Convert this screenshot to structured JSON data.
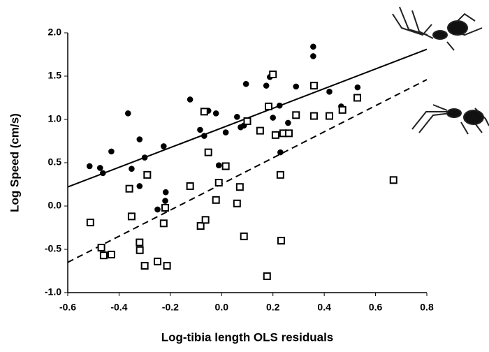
{
  "chart_data": {
    "type": "scatter",
    "x_label": "Log-tibia length OLS residuals",
    "y_label": "Log Speed (cm/s)",
    "xlim": [
      -0.6,
      0.8
    ],
    "ylim": [
      -1.0,
      2.0
    ],
    "xticks": [
      -0.6,
      -0.4,
      -0.2,
      {
        "value": 0,
        "label": "0.0"
      },
      0.2,
      0.4,
      0.6,
      0.8
    ],
    "yticks": [
      {
        "value": -1,
        "label": "-1.0"
      },
      -0.5,
      {
        "value": 0,
        "label": "0.0"
      },
      0.5,
      {
        "value": 1,
        "label": "1.0"
      },
      1.5,
      {
        "value": 2,
        "label": "2.0"
      }
    ],
    "grid": false,
    "series": [
      {
        "color": "#000000",
        "marker": "circle",
        "filled": true,
        "x": [
          -0.515,
          -0.474,
          -0.463,
          -0.43,
          -0.365,
          -0.351,
          -0.32,
          -0.32,
          -0.3,
          -0.226,
          -0.218,
          -0.22,
          -0.25,
          -0.123,
          -0.084,
          -0.068,
          -0.052,
          -0.022,
          -0.011,
          0.016,
          0.095,
          0.06,
          0.074,
          0.087,
          0.174,
          0.188,
          0.2,
          0.226,
          0.229,
          0.259,
          0.29,
          0.357,
          0.357,
          0.42,
          0.466,
          0.53
        ],
        "values": [
          0.46,
          0.44,
          0.38,
          0.63,
          1.07,
          0.43,
          0.77,
          0.23,
          0.56,
          0.69,
          0.16,
          0.06,
          -0.04,
          1.23,
          0.88,
          0.81,
          1.1,
          1.07,
          0.47,
          0.85,
          1.41,
          1.03,
          0.91,
          0.93,
          1.39,
          1.49,
          1.02,
          1.16,
          0.62,
          0.96,
          1.38,
          1.84,
          1.73,
          1.32,
          1.15,
          1.37
        ]
      },
      {
        "color": "#000000",
        "marker": "square",
        "filled": false,
        "x": [
          -0.512,
          -0.469,
          -0.46,
          -0.43,
          -0.36,
          -0.351,
          -0.32,
          -0.319,
          -0.3,
          -0.29,
          -0.25,
          -0.226,
          -0.22,
          -0.213,
          -0.123,
          -0.082,
          -0.068,
          -0.063,
          -0.052,
          -0.022,
          -0.011,
          0.016,
          0.06,
          0.071,
          0.087,
          0.1,
          0.15,
          0.177,
          0.183,
          0.2,
          0.21,
          0.229,
          0.232,
          0.24,
          0.262,
          0.29,
          0.36,
          0.36,
          0.42,
          0.471,
          0.529,
          0.67
        ],
        "values": [
          -0.19,
          -0.48,
          -0.57,
          -0.56,
          0.2,
          -0.12,
          -0.42,
          -0.51,
          -0.69,
          0.36,
          -0.64,
          -0.2,
          -0.02,
          -0.69,
          0.23,
          -0.23,
          1.09,
          -0.16,
          0.62,
          0.07,
          0.27,
          0.46,
          0.03,
          0.22,
          -0.35,
          0.98,
          0.87,
          -0.81,
          1.15,
          1.52,
          0.82,
          0.36,
          -0.4,
          0.84,
          0.84,
          1.05,
          1.39,
          1.04,
          1.04,
          1.11,
          1.25,
          0.3
        ]
      }
    ],
    "lines": [
      {
        "color": "#000000",
        "dashed": false,
        "x": [
          -0.6,
          0.8
        ],
        "y": [
          0.22,
          1.81
        ]
      },
      {
        "color": "#000000",
        "dashed": true,
        "x": [
          -0.6,
          0.8
        ],
        "y": [
          -0.65,
          1.46
        ]
      }
    ]
  }
}
